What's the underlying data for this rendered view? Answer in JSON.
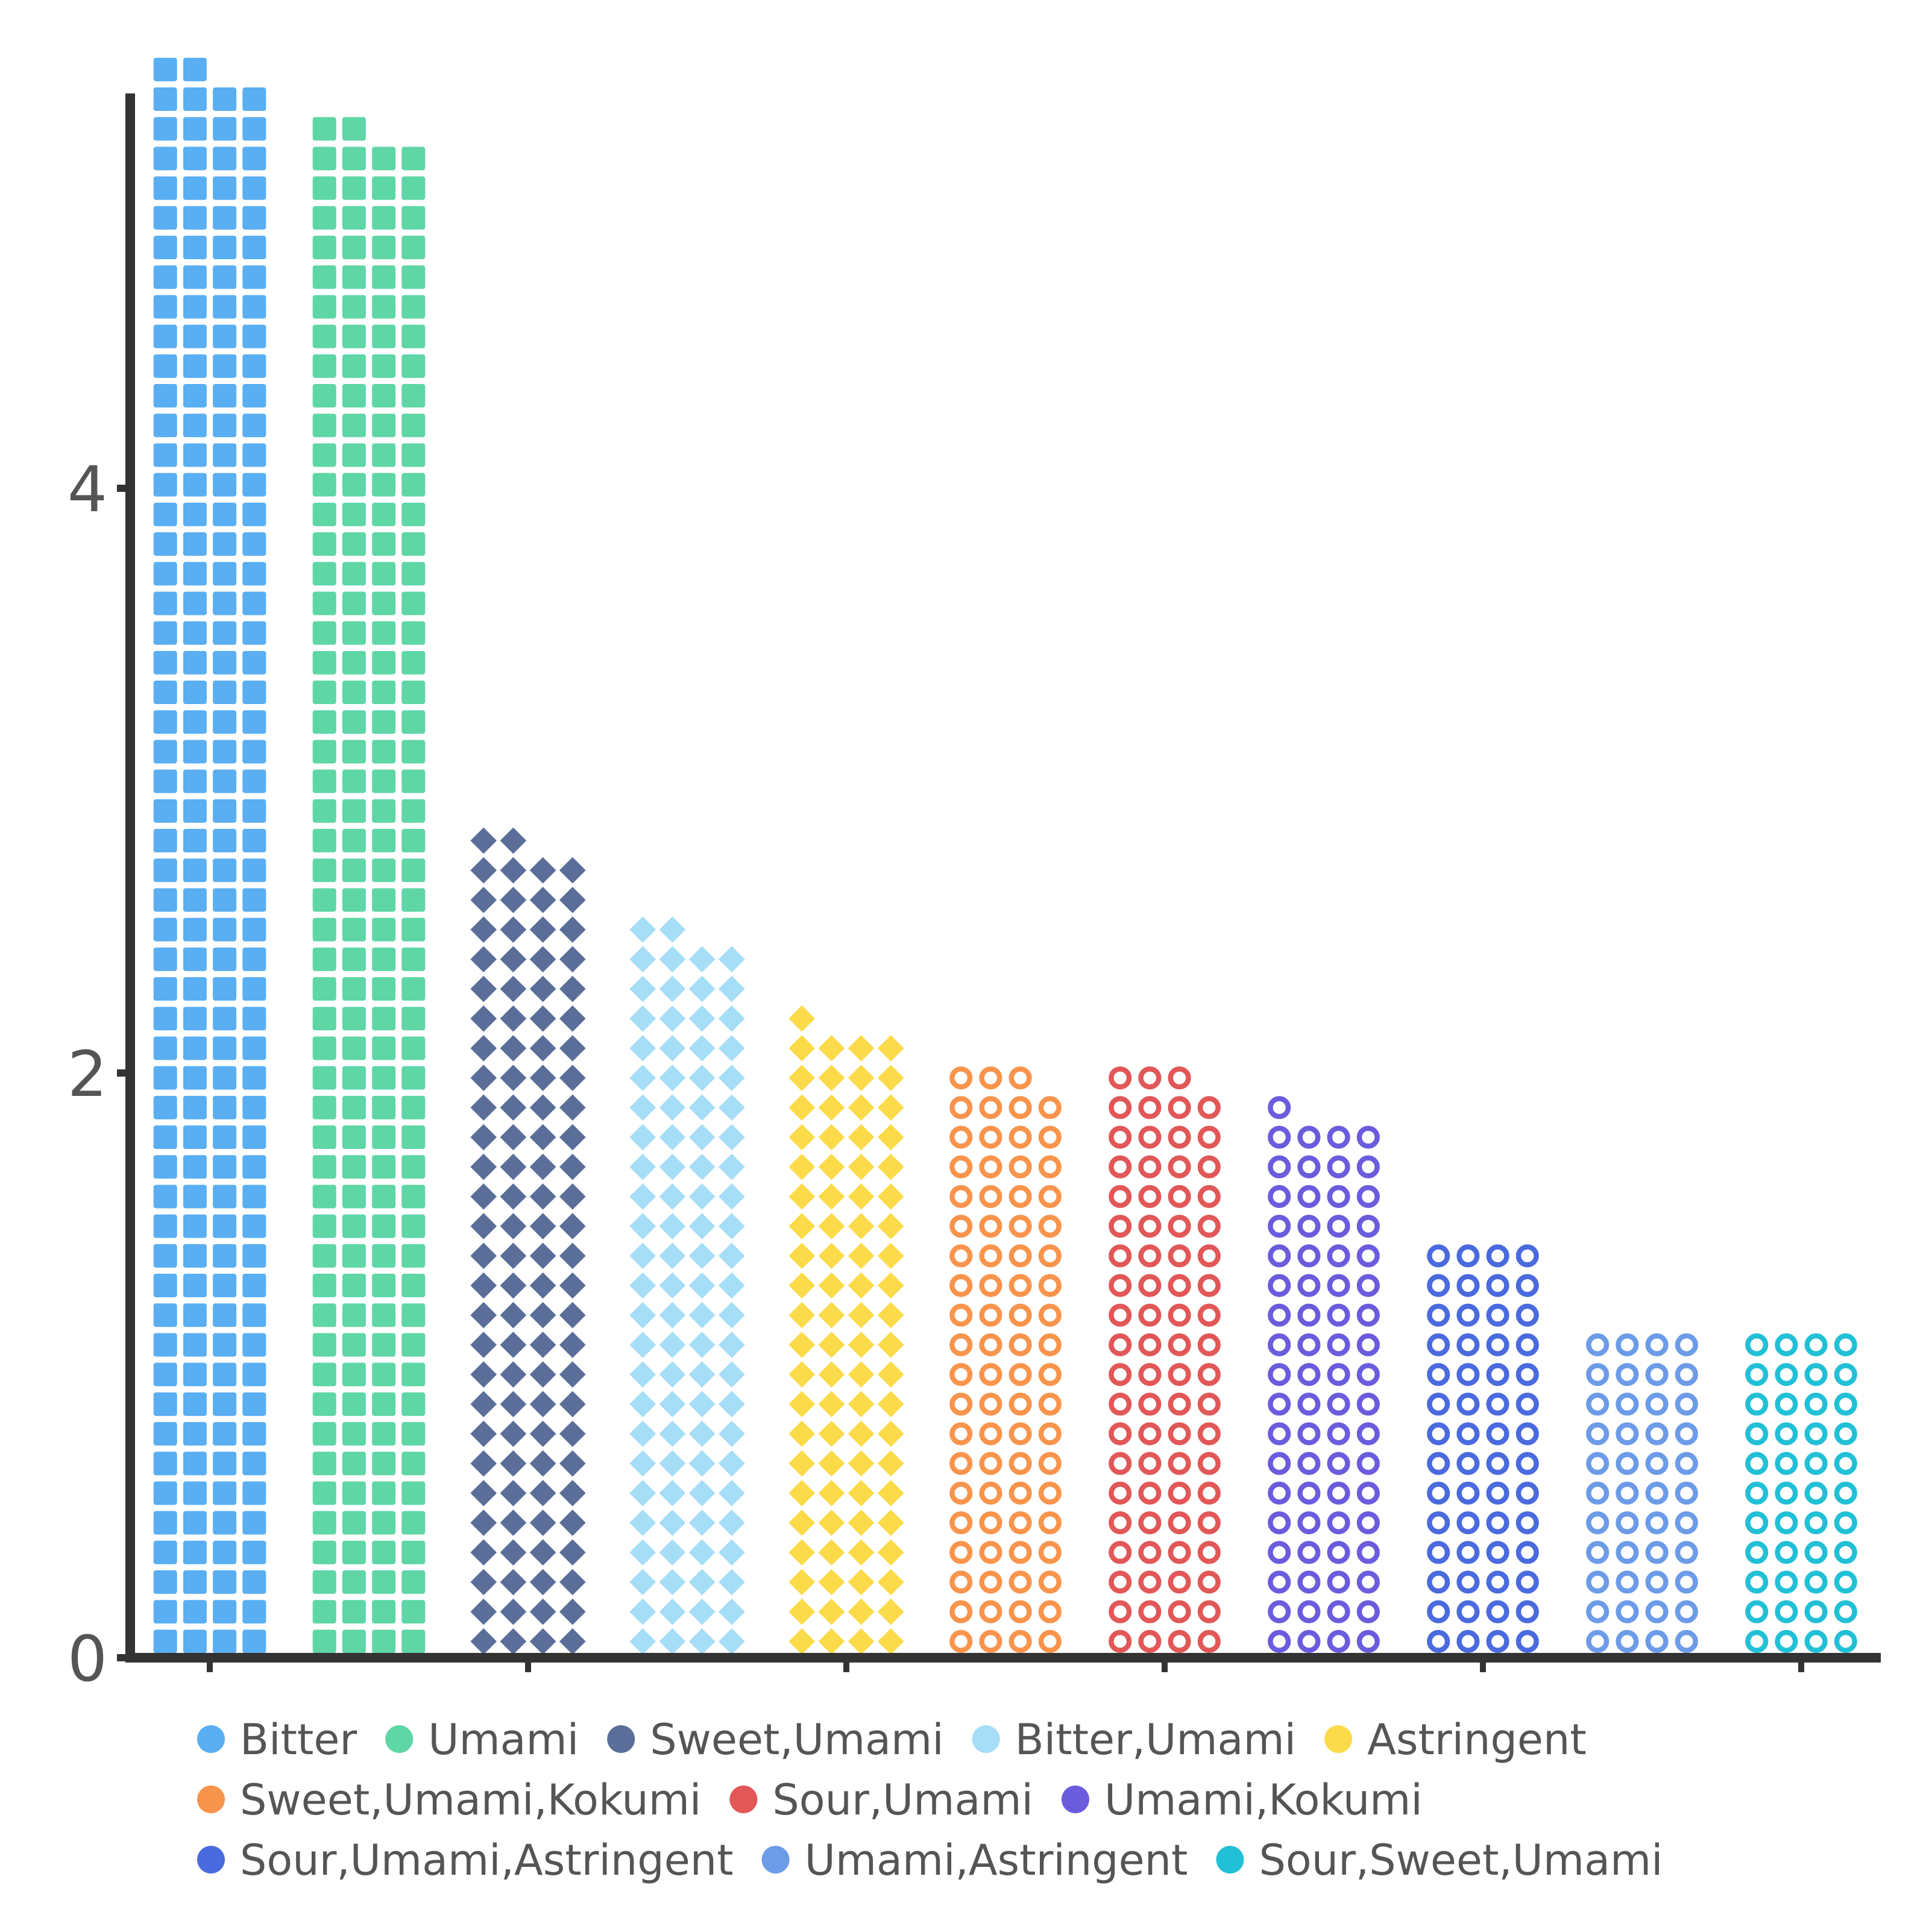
{
  "chart_data": {
    "type": "bar",
    "variant": "pictorial-stacked-symbols",
    "title": "",
    "xlabel": "",
    "ylabel": "",
    "ylim": [
      0,
      5.4
    ],
    "yticks": [
      0,
      2,
      4
    ],
    "grid": false,
    "legend_position": "bottom",
    "symbol_unit": 0.025,
    "symbols_per_row": 4,
    "series": [
      {
        "name": "Bitter",
        "value": 5.35,
        "color": "#5AAEF2",
        "symbol": "rounded-square"
      },
      {
        "name": "Umami",
        "value": 5.15,
        "color": "#5ED6A6",
        "symbol": "rounded-square"
      },
      {
        "name": "Sweet,Umami",
        "value": 2.75,
        "color": "#5A6E99",
        "symbol": "diamond"
      },
      {
        "name": "Bitter,Umami",
        "value": 2.45,
        "color": "#A6DDF7",
        "symbol": "diamond"
      },
      {
        "name": "Astringent",
        "value": 2.125,
        "color": "#FCDB4A",
        "symbol": "diamond"
      },
      {
        "name": "Sweet,Umami,Kokumi",
        "value": 1.975,
        "color": "#F9944C",
        "symbol": "ring"
      },
      {
        "name": "Sour,Umami",
        "value": 1.975,
        "color": "#E25757",
        "symbol": "ring"
      },
      {
        "name": "Umami,Kokumi",
        "value": 1.825,
        "color": "#6B5CDD",
        "symbol": "ring"
      },
      {
        "name": "Sour,Umami,Astringent",
        "value": 1.4,
        "color": "#4A6ADE",
        "symbol": "ring"
      },
      {
        "name": "Umami,Astringent",
        "value": 1.1,
        "color": "#6C9BE8",
        "symbol": "ring"
      },
      {
        "name": "Sour,Sweet,Umami",
        "value": 1.1,
        "color": "#22C0D6",
        "symbol": "ring"
      }
    ]
  }
}
